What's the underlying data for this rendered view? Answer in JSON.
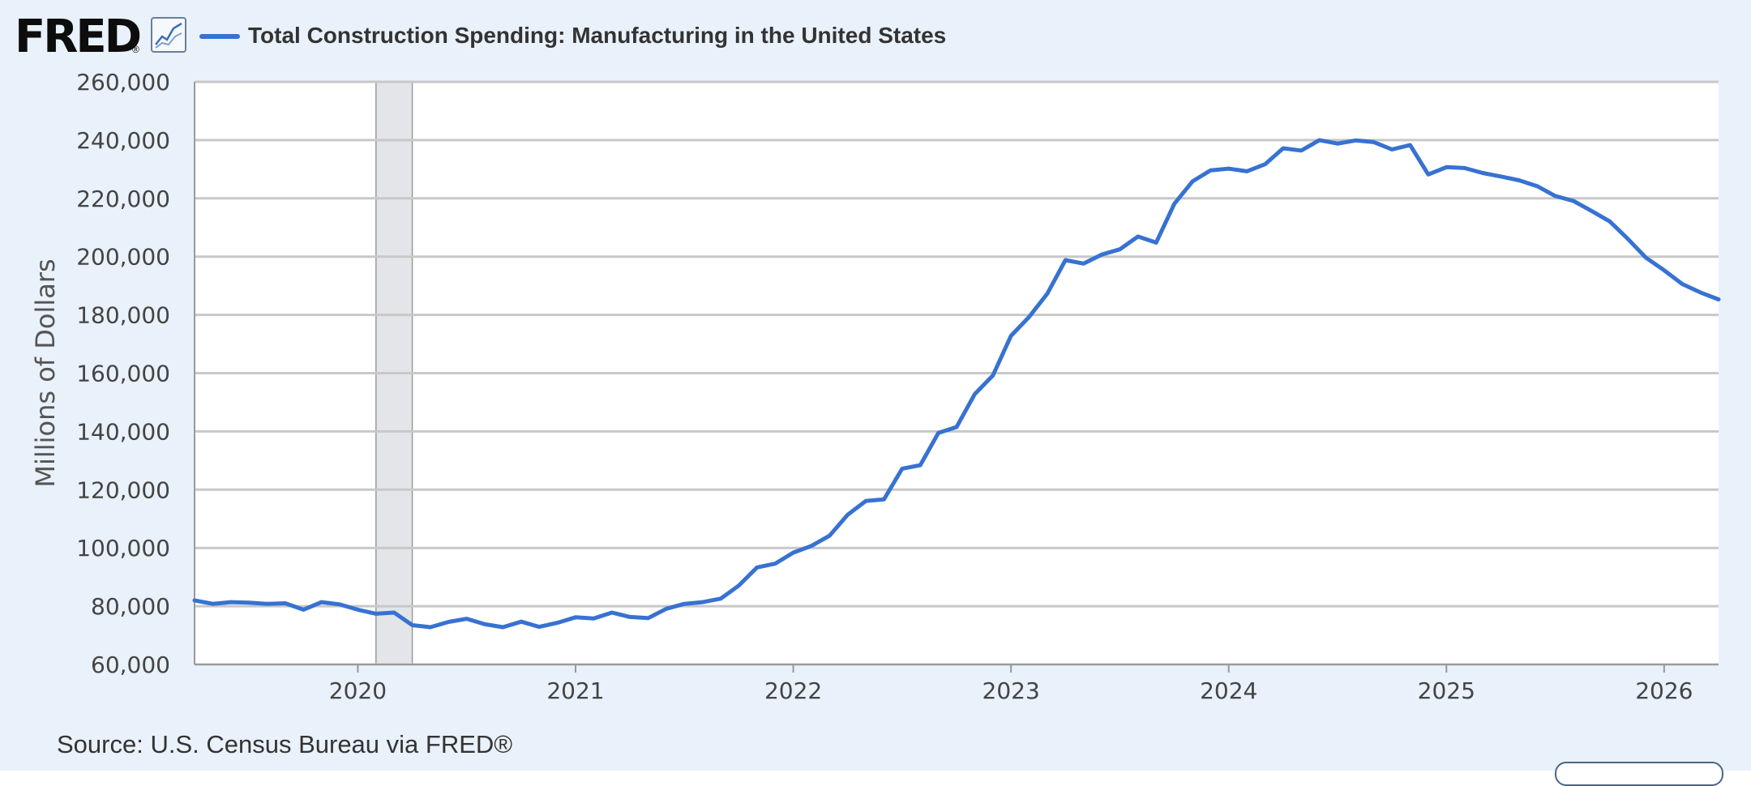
{
  "header": {
    "logo_text": "FRED",
    "logo_registered": "®",
    "graph_icon": "line-graph-icon",
    "legend_label": "Total Construction Spending: Manufacturing in the United States"
  },
  "footer": {
    "source": "Source: U.S. Census Bureau via FRED®"
  },
  "colors": {
    "series": "#3772d2",
    "background": "#e9f1fa",
    "plot_background": "#ffffff",
    "grid": "#c8c8c8",
    "recession_shade": "#e3e5e8"
  },
  "chart_data": {
    "type": "line",
    "title": "",
    "xlabel": "",
    "ylabel": "Millions of Dollars",
    "ylim": [
      60000,
      260000
    ],
    "yticks": [
      60000,
      80000,
      100000,
      120000,
      140000,
      160000,
      180000,
      200000,
      220000,
      240000,
      260000
    ],
    "ytick_labels": [
      "60,000",
      "80,000",
      "100,000",
      "120,000",
      "140,000",
      "160,000",
      "180,000",
      "200,000",
      "220,000",
      "240,000",
      "260,000"
    ],
    "xlim": [
      "2019-04",
      "2026-04"
    ],
    "xticks": [
      "2020-01",
      "2021-01",
      "2022-01",
      "2023-01",
      "2024-01",
      "2025-01",
      "2026-01"
    ],
    "xtick_labels": [
      "2020",
      "2021",
      "2022",
      "2023",
      "2024",
      "2025",
      "2026"
    ],
    "grid": "horizontal",
    "legend": "top-left",
    "recession_periods": [
      {
        "start": "2020-02",
        "end": "2020-04"
      }
    ],
    "series": [
      {
        "name": "Total Construction Spending: Manufacturing in the United States",
        "x": [
          "2019-04",
          "2019-05",
          "2019-06",
          "2019-07",
          "2019-08",
          "2019-09",
          "2019-10",
          "2019-11",
          "2019-12",
          "2020-01",
          "2020-02",
          "2020-03",
          "2020-04",
          "2020-05",
          "2020-06",
          "2020-07",
          "2020-08",
          "2020-09",
          "2020-10",
          "2020-11",
          "2020-12",
          "2021-01",
          "2021-02",
          "2021-03",
          "2021-04",
          "2021-05",
          "2021-06",
          "2021-07",
          "2021-08",
          "2021-09",
          "2021-10",
          "2021-11",
          "2021-12",
          "2022-01",
          "2022-02",
          "2022-03",
          "2022-04",
          "2022-05",
          "2022-06",
          "2022-07",
          "2022-08",
          "2022-09",
          "2022-10",
          "2022-11",
          "2022-12",
          "2023-01",
          "2023-02",
          "2023-03",
          "2023-04",
          "2023-05",
          "2023-06",
          "2023-07",
          "2023-08",
          "2023-09",
          "2023-10",
          "2023-11",
          "2023-12",
          "2024-01",
          "2024-02",
          "2024-03",
          "2024-04",
          "2024-05",
          "2024-06",
          "2024-07",
          "2024-08",
          "2024-09",
          "2024-10",
          "2024-11",
          "2024-12",
          "2025-01",
          "2025-02",
          "2025-03",
          "2025-04",
          "2025-05",
          "2025-06",
          "2025-07",
          "2025-08",
          "2025-09",
          "2025-10",
          "2025-11",
          "2025-12",
          "2026-01",
          "2026-02",
          "2026-03",
          "2026-04"
        ],
        "values": [
          82000,
          80800,
          81400,
          81200,
          80800,
          81000,
          78800,
          81400,
          80600,
          78800,
          77400,
          77800,
          73500,
          72800,
          74600,
          75700,
          73800,
          72800,
          74700,
          72900,
          74300,
          76200,
          75800,
          77800,
          76300,
          75900,
          79100,
          80800,
          81400,
          82600,
          87100,
          93300,
          94600,
          98400,
          100700,
          104200,
          111400,
          116100,
          116700,
          127200,
          128400,
          139500,
          141500,
          152800,
          159200,
          172800,
          179300,
          187300,
          198800,
          197600,
          200700,
          202500,
          206900,
          204800,
          218100,
          225800,
          229600,
          230200,
          229300,
          231700,
          237200,
          236400,
          240000,
          238800,
          239900,
          239300,
          236800,
          238300,
          228200,
          230700,
          230400,
          228700,
          227500,
          226200,
          224200,
          220800,
          219100,
          215700,
          212100,
          206100,
          199600,
          195300,
          190600,
          187700,
          185300
        ]
      }
    ]
  }
}
